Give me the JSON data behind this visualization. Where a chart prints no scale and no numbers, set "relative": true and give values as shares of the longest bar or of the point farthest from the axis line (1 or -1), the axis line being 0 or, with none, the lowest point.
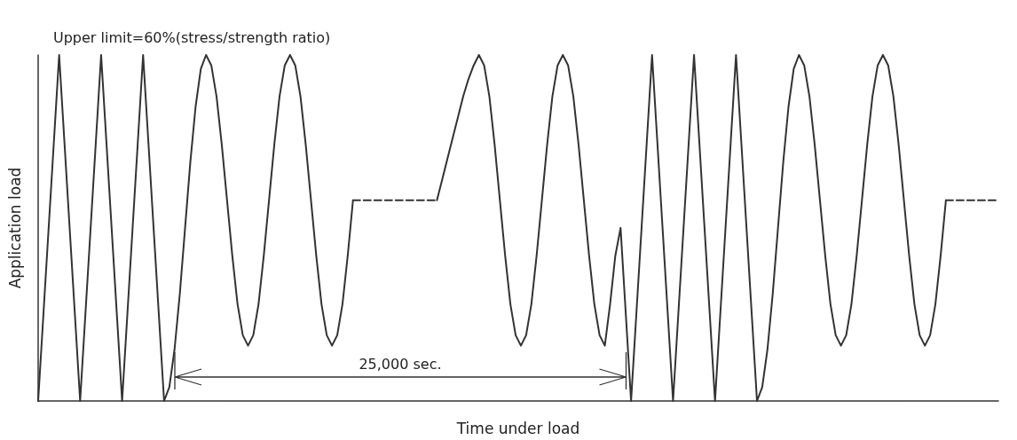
{
  "chart_data": {
    "type": "line",
    "relative": true,
    "xlabel": "Time under load",
    "ylabel": "Application load",
    "marker": "none",
    "annotations": [
      "Upper limit=60%(stress/strength ratio)",
      "25,000 sec."
    ],
    "categories": [
      null,
      null,
      null,
      null,
      null,
      null,
      null,
      null,
      null,
      null,
      null,
      null,
      null,
      null,
      null,
      null,
      null,
      null,
      null,
      null,
      null,
      null,
      null,
      null,
      null,
      null,
      null,
      null,
      null,
      null,
      null,
      null,
      null,
      null,
      null,
      null,
      null,
      null,
      null,
      null,
      null,
      null,
      null,
      null,
      null,
      null,
      null,
      null,
      null,
      null,
      null,
      null,
      null,
      null,
      null,
      null,
      null,
      null,
      null,
      null,
      null,
      null,
      null,
      null,
      null,
      null,
      null,
      null,
      null,
      null,
      null,
      null,
      null,
      null,
      null,
      null,
      null,
      null,
      null,
      null,
      null,
      null,
      null,
      null,
      null,
      null,
      null,
      null,
      null,
      null,
      null,
      null,
      null,
      null,
      null,
      null,
      null,
      null,
      null,
      null,
      null,
      null,
      null,
      null,
      null,
      null,
      null,
      null,
      null,
      null,
      null,
      null,
      null,
      null,
      null,
      null,
      null,
      null,
      null,
      null,
      null,
      null,
      null,
      null,
      null,
      null,
      null,
      null,
      null,
      null,
      null,
      null,
      null,
      null,
      null,
      null,
      null,
      null,
      null,
      null,
      null,
      null,
      null,
      null,
      null,
      null,
      null,
      null,
      null,
      null,
      null,
      null,
      null,
      null,
      null,
      null,
      null,
      null,
      null,
      null,
      null,
      null,
      null,
      null,
      null,
      null,
      null,
      null,
      null,
      null,
      null,
      null,
      null,
      null,
      null,
      null,
      null,
      null,
      null,
      null,
      null,
      null,
      null,
      null
    ],
    "series": [
      {
        "color": "#333333",
        "line_style": "solid",
        "values": [
          0,
          0.25,
          0.5,
          0.75,
          1,
          0.75,
          0.5,
          0.25,
          0,
          0.25,
          0.5,
          0.75,
          1,
          0.75,
          0.5,
          0.25,
          0,
          0.25,
          0.5,
          0.75,
          1,
          0.75,
          0.5,
          0.25,
          0,
          0.04,
          0.15,
          0.31,
          0.5,
          0.69,
          0.85,
          0.96,
          1,
          0.97,
          0.88,
          0.74,
          0.58,
          0.42,
          0.28,
          0.19,
          0.16,
          0.19,
          0.28,
          0.42,
          0.58,
          0.74,
          0.88,
          0.97,
          1,
          0.97,
          0.88,
          0.74,
          0.58,
          0.42,
          0.28,
          0.19,
          0.16,
          0.19,
          0.28,
          0.42,
          0.58,
          null,
          null,
          null,
          null,
          null,
          null,
          null,
          null,
          null,
          null,
          null,
          null,
          null,
          null,
          null,
          null,
          null,
          null,
          null,
          null,
          null,
          null,
          null,
          null,
          null,
          null,
          null,
          null,
          null,
          null,
          null,
          null,
          null,
          null,
          null,
          null,
          null,
          null,
          null,
          null,
          null,
          null,
          null,
          null,
          null,
          null,
          null,
          null,
          null,
          null,
          null,
          null,
          null,
          null,
          null,
          null,
          null,
          null,
          null,
          null,
          null,
          null,
          null,
          null,
          null,
          null,
          null,
          null,
          null,
          null,
          null,
          null,
          null,
          null,
          null,
          null,
          null,
          null,
          null,
          null,
          null,
          null,
          null,
          null,
          null,
          null,
          null,
          null,
          null,
          null,
          null,
          null,
          null,
          null,
          null,
          null,
          null,
          null,
          null,
          null,
          null,
          null,
          null,
          null,
          null,
          null,
          null,
          null,
          null,
          null,
          null,
          null,
          null,
          null,
          null,
          null,
          null,
          null,
          null,
          null,
          null,
          null,
          null
        ]
      },
      {
        "color": "#333333",
        "line_style": "dashed",
        "values": [
          null,
          null,
          null,
          null,
          null,
          null,
          null,
          null,
          null,
          null,
          null,
          null,
          null,
          null,
          null,
          null,
          null,
          null,
          null,
          null,
          null,
          null,
          null,
          null,
          null,
          null,
          null,
          null,
          null,
          null,
          null,
          null,
          null,
          null,
          null,
          null,
          null,
          null,
          null,
          null,
          null,
          null,
          null,
          null,
          null,
          null,
          null,
          null,
          null,
          null,
          null,
          null,
          null,
          null,
          null,
          null,
          null,
          null,
          null,
          null,
          0.58,
          0.58,
          0.58,
          0.58,
          0.58,
          0.58,
          0.58,
          0.58,
          0.58,
          0.58,
          0.58,
          0.58,
          0.58,
          0.58,
          0.58,
          0.58,
          0.58,
          null,
          null,
          null,
          null,
          null,
          null,
          null,
          null,
          null,
          null,
          null,
          null,
          null,
          null,
          null,
          null,
          null,
          null,
          null,
          null,
          null,
          null,
          null,
          null,
          null,
          null,
          null,
          null,
          null,
          null,
          null,
          null,
          null,
          null,
          null,
          null,
          null,
          null,
          null,
          null,
          null,
          null,
          null,
          null,
          null,
          null,
          null,
          null,
          null,
          null,
          null,
          null,
          null,
          null,
          null,
          null,
          null,
          null,
          null,
          null,
          null,
          null,
          null,
          null,
          null,
          null,
          null,
          null,
          null,
          null,
          null,
          null,
          null,
          null,
          null,
          null,
          null,
          null,
          null,
          null,
          null,
          null,
          null,
          null,
          null,
          null,
          null,
          null,
          null,
          null,
          null,
          null,
          null,
          null,
          null,
          null,
          null,
          null,
          null,
          null,
          null,
          null,
          null,
          null,
          null,
          null,
          null
        ]
      },
      {
        "color": "#333333",
        "line_style": "solid",
        "values": [
          null,
          null,
          null,
          null,
          null,
          null,
          null,
          null,
          null,
          null,
          null,
          null,
          null,
          null,
          null,
          null,
          null,
          null,
          null,
          null,
          null,
          null,
          null,
          null,
          null,
          null,
          null,
          null,
          null,
          null,
          null,
          null,
          null,
          null,
          null,
          null,
          null,
          null,
          null,
          null,
          null,
          null,
          null,
          null,
          null,
          null,
          null,
          null,
          null,
          null,
          null,
          null,
          null,
          null,
          null,
          null,
          null,
          null,
          null,
          null,
          null,
          null,
          null,
          null,
          null,
          null,
          null,
          null,
          null,
          null,
          null,
          null,
          null,
          null,
          null,
          null,
          0.58,
          0.64,
          0.7,
          0.76,
          0.82,
          0.88,
          0.93,
          0.97,
          1,
          0.97,
          0.88,
          0.74,
          0.58,
          0.42,
          0.28,
          0.19,
          0.16,
          0.19,
          0.28,
          0.42,
          0.58,
          0.74,
          0.88,
          0.97,
          1,
          0.97,
          0.88,
          0.74,
          0.58,
          0.42,
          0.28,
          0.19,
          0.16,
          0.28,
          0.42,
          0.5,
          0.25,
          0,
          0.25,
          0.5,
          0.75,
          1,
          0.75,
          0.5,
          0.25,
          0,
          0.25,
          0.5,
          0.75,
          1,
          0.75,
          0.5,
          0.25,
          0,
          0.25,
          0.5,
          0.75,
          1,
          0.75,
          0.5,
          0.25,
          0,
          0.04,
          0.15,
          0.31,
          0.5,
          0.69,
          0.85,
          0.96,
          1,
          0.97,
          0.88,
          0.74,
          0.58,
          0.42,
          0.28,
          0.19,
          0.16,
          0.19,
          0.28,
          0.42,
          0.58,
          0.74,
          0.88,
          0.97,
          1,
          0.97,
          0.88,
          0.74,
          0.58,
          0.42,
          0.28,
          0.19,
          0.16,
          0.19,
          0.28,
          0.42,
          0.58,
          null,
          null,
          null,
          null,
          null,
          null,
          null,
          null,
          null,
          null
        ]
      },
      {
        "color": "#333333",
        "line_style": "dashed",
        "values": [
          null,
          null,
          null,
          null,
          null,
          null,
          null,
          null,
          null,
          null,
          null,
          null,
          null,
          null,
          null,
          null,
          null,
          null,
          null,
          null,
          null,
          null,
          null,
          null,
          null,
          null,
          null,
          null,
          null,
          null,
          null,
          null,
          null,
          null,
          null,
          null,
          null,
          null,
          null,
          null,
          null,
          null,
          null,
          null,
          null,
          null,
          null,
          null,
          null,
          null,
          null,
          null,
          null,
          null,
          null,
          null,
          null,
          null,
          null,
          null,
          null,
          null,
          null,
          null,
          null,
          null,
          null,
          null,
          null,
          null,
          null,
          null,
          null,
          null,
          null,
          null,
          null,
          null,
          null,
          null,
          null,
          null,
          null,
          null,
          null,
          null,
          null,
          null,
          null,
          null,
          null,
          null,
          null,
          null,
          null,
          null,
          null,
          null,
          null,
          null,
          null,
          null,
          null,
          null,
          null,
          null,
          null,
          null,
          null,
          null,
          null,
          null,
          null,
          null,
          null,
          null,
          null,
          null,
          null,
          null,
          null,
          null,
          null,
          null,
          null,
          null,
          null,
          null,
          null,
          null,
          null,
          null,
          null,
          null,
          null,
          null,
          null,
          null,
          null,
          null,
          null,
          null,
          null,
          null,
          null,
          null,
          null,
          null,
          null,
          null,
          null,
          null,
          null,
          null,
          null,
          null,
          null,
          null,
          null,
          null,
          null,
          null,
          null,
          null,
          null,
          null,
          null,
          null,
          null,
          null,
          null,
          null,
          null,
          0.58,
          0.58,
          0.58,
          0.58,
          0.58,
          0.58,
          0.58,
          0.58,
          0.58,
          0.58,
          0.58
        ]
      }
    ]
  }
}
